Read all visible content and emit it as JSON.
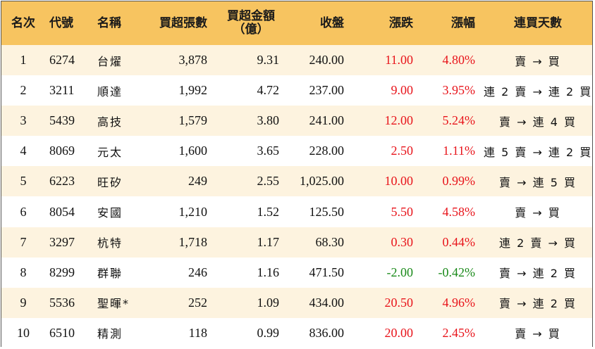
{
  "headers": {
    "rank": "名次",
    "code": "代號",
    "name": "名稱",
    "buy_lots": "買超張數",
    "buy_amount_line1": "買超金額",
    "buy_amount_line2": "（億）",
    "close": "收盤",
    "change": "漲跌",
    "pct": "漲幅",
    "streak": "連買天數"
  },
  "colors": {
    "header_bg": "#f7c460",
    "stripe_bg": "#fdf3df",
    "up": "#e8141b",
    "down": "#1a8a1a"
  },
  "rows": [
    {
      "rank": "1",
      "code": "6274",
      "name": "台燿",
      "buy_lots": "3,878",
      "buy_amount": "9.31",
      "close": "240.00",
      "change": "11.00",
      "pct": "4.80%",
      "dir": "up",
      "streak": "賣 → 買"
    },
    {
      "rank": "2",
      "code": "3211",
      "name": "順達",
      "buy_lots": "1,992",
      "buy_amount": "4.72",
      "close": "237.00",
      "change": "9.00",
      "pct": "3.95%",
      "dir": "up",
      "streak": "連 2 賣 → 連 2 買"
    },
    {
      "rank": "3",
      "code": "5439",
      "name": "高技",
      "buy_lots": "1,579",
      "buy_amount": "3.80",
      "close": "241.00",
      "change": "12.00",
      "pct": "5.24%",
      "dir": "up",
      "streak": "賣 → 連 4 買"
    },
    {
      "rank": "4",
      "code": "8069",
      "name": "元太",
      "buy_lots": "1,600",
      "buy_amount": "3.65",
      "close": "228.00",
      "change": "2.50",
      "pct": "1.11%",
      "dir": "up",
      "streak": "連 5 賣 → 連 2 買"
    },
    {
      "rank": "5",
      "code": "6223",
      "name": "旺矽",
      "buy_lots": "249",
      "buy_amount": "2.55",
      "close": "1,025.00",
      "change": "10.00",
      "pct": "0.99%",
      "dir": "up",
      "streak": "賣 → 連 5 買"
    },
    {
      "rank": "6",
      "code": "8054",
      "name": "安國",
      "buy_lots": "1,210",
      "buy_amount": "1.52",
      "close": "125.50",
      "change": "5.50",
      "pct": "4.58%",
      "dir": "up",
      "streak": "賣 → 買"
    },
    {
      "rank": "7",
      "code": "3297",
      "name": "杭特",
      "buy_lots": "1,718",
      "buy_amount": "1.17",
      "close": "68.30",
      "change": "0.30",
      "pct": "0.44%",
      "dir": "up",
      "streak": "連 2 賣 → 買"
    },
    {
      "rank": "8",
      "code": "8299",
      "name": "群聯",
      "buy_lots": "246",
      "buy_amount": "1.16",
      "close": "471.50",
      "change": "-2.00",
      "pct": "-0.42%",
      "dir": "down",
      "streak": "賣 → 連 2 買"
    },
    {
      "rank": "9",
      "code": "5536",
      "name": "聖暉*",
      "buy_lots": "252",
      "buy_amount": "1.09",
      "close": "434.00",
      "change": "20.50",
      "pct": "4.96%",
      "dir": "up",
      "streak": "賣 → 連 2 買"
    },
    {
      "rank": "10",
      "code": "6510",
      "name": "精測",
      "buy_lots": "118",
      "buy_amount": "0.99",
      "close": "836.00",
      "change": "20.00",
      "pct": "2.45%",
      "dir": "up",
      "streak": "賣 → 買"
    }
  ]
}
